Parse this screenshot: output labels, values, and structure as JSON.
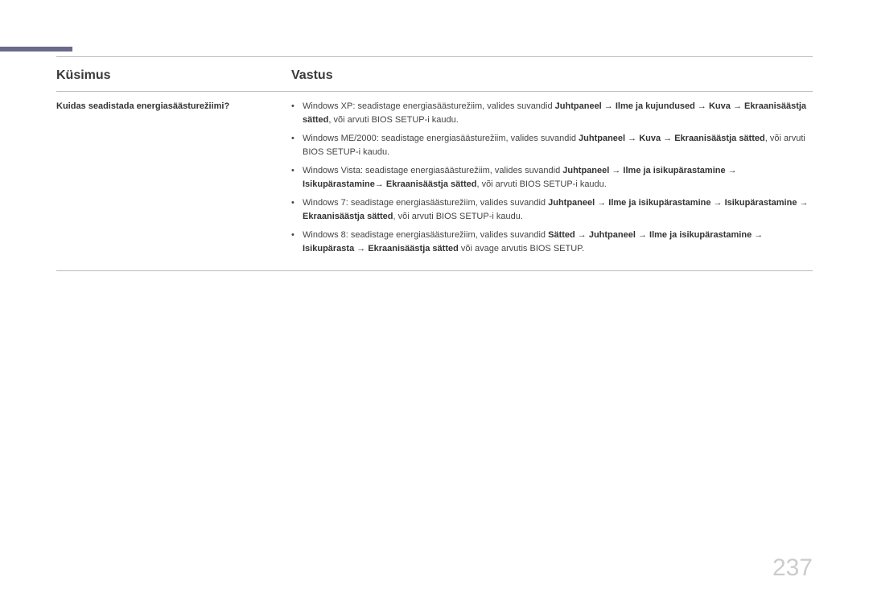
{
  "page_number": "237",
  "colors": {
    "top_mark": "#6a6a8a",
    "rule": "#bbbbbb",
    "text": "#333333",
    "body_text": "#444444",
    "page_num": "#cccccc",
    "background": "#ffffff"
  },
  "header": {
    "left": "Küsimus",
    "right": "Vastus"
  },
  "question": "Kuidas seadistada energiasäästurežiimi?",
  "items": [
    {
      "segments": [
        {
          "t": "Windows XP: seadistage energiasäästurežiim, valides suvandid ",
          "b": false
        },
        {
          "t": "Juhtpaneel → Ilme ja kujundused → Kuva → Ekraanisäästja sätted",
          "b": true
        },
        {
          "t": ", või arvuti BIOS SETUP-i kaudu.",
          "b": false
        }
      ]
    },
    {
      "segments": [
        {
          "t": "Windows ME/2000: seadistage energiasäästurežiim, valides suvandid ",
          "b": false
        },
        {
          "t": "Juhtpaneel → Kuva → Ekraanisäästja sätted",
          "b": true
        },
        {
          "t": ", või arvuti BIOS SETUP-i kaudu.",
          "b": false
        }
      ]
    },
    {
      "segments": [
        {
          "t": "Windows Vista: seadistage energiasäästurežiim, valides suvandid ",
          "b": false
        },
        {
          "t": "Juhtpaneel → Ilme ja isikupärastamine → Isikupärastamine→ Ekraanisäästja sätted",
          "b": true
        },
        {
          "t": ", või arvuti BIOS SETUP-i kaudu.",
          "b": false
        }
      ]
    },
    {
      "segments": [
        {
          "t": "Windows 7: seadistage energiasäästurežiim, valides suvandid ",
          "b": false
        },
        {
          "t": "Juhtpaneel → Ilme ja isikupärastamine → Isikupärastamine → Ekraanisäästja sätted",
          "b": true
        },
        {
          "t": ", või arvuti BIOS SETUP-i kaudu.",
          "b": false
        }
      ]
    },
    {
      "segments": [
        {
          "t": "Windows 8: seadistage energiasäästurežiim, valides suvandid ",
          "b": false
        },
        {
          "t": "Sätted → Juhtpaneel → Ilme ja isikupärastamine → Isikupärasta → Ekraanisäästja sätted",
          "b": true
        },
        {
          "t": " või avage arvutis BIOS SETUP.",
          "b": false
        }
      ]
    }
  ]
}
